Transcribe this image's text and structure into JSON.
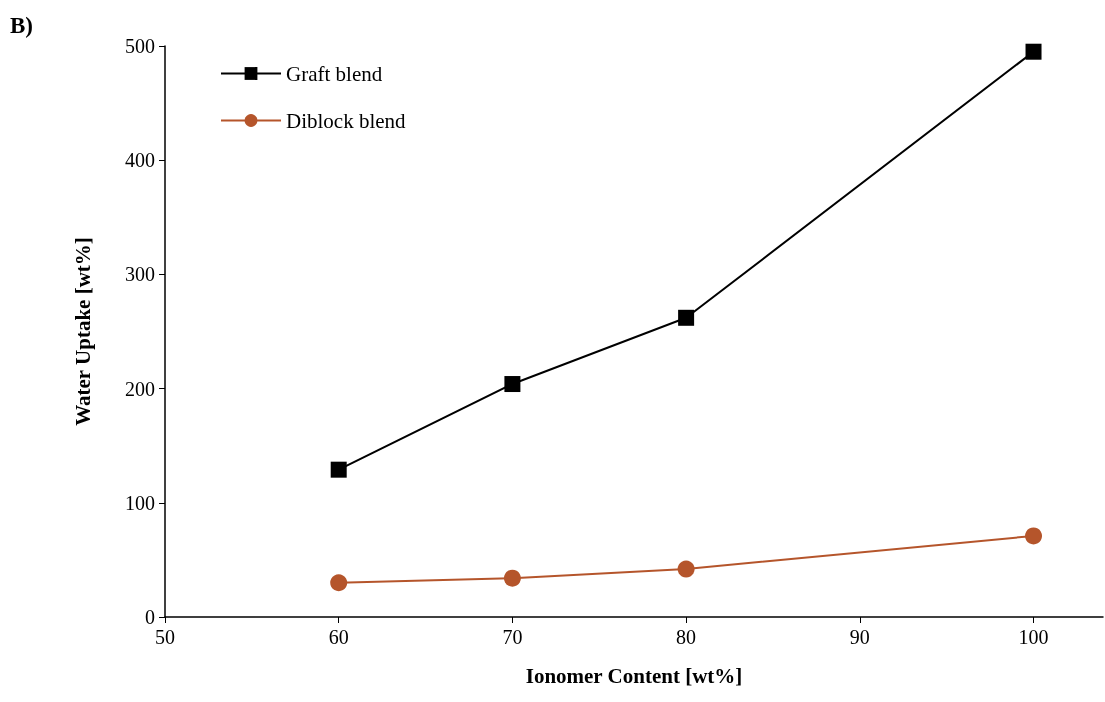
{
  "chart_data": {
    "type": "line",
    "xlabel": "Ionomer Content [wt%]",
    "ylabel": "Water Uptake [wt%]",
    "annotations": [
      "B)"
    ],
    "xlim": [
      50,
      104
    ],
    "xticks": [
      50,
      60,
      70,
      80,
      90,
      100
    ],
    "ylim": [
      0,
      500
    ],
    "yticks": [
      0,
      100,
      200,
      300,
      400,
      500
    ],
    "grid": false,
    "legend": "top left",
    "line_style": "solid",
    "series": [
      {
        "name": "Graft blend",
        "color": "#000000",
        "marker": "square",
        "x": [
          60,
          70,
          80,
          100
        ],
        "values": [
          129,
          204,
          262,
          495
        ]
      },
      {
        "name": "Diblock blend",
        "color": "#b5552b",
        "marker": "circle",
        "x": [
          60,
          70,
          80,
          100
        ],
        "values": [
          30,
          34,
          42,
          71
        ]
      }
    ]
  }
}
